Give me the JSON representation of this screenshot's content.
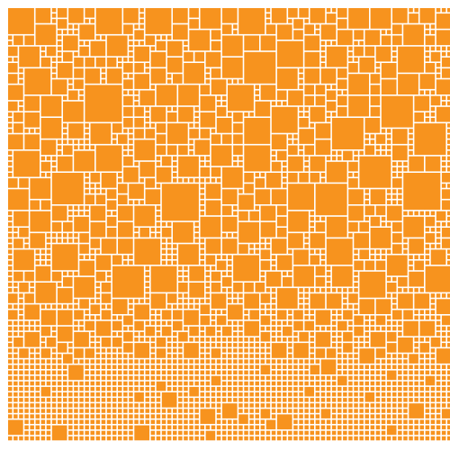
{
  "mosaic": {
    "tile_color": "#F7931E",
    "gap_color": "#FFFFFF",
    "grid_columns": 81,
    "grid_rows": 79,
    "seed": 20240611,
    "density_bands": [
      {
        "from_row": 0,
        "to_row": 24,
        "large_tile_ratio": 0.62
      },
      {
        "from_row": 24,
        "to_row": 51,
        "large_tile_ratio": 0.48
      },
      {
        "from_row": 51,
        "to_row": 63,
        "large_tile_ratio": 0.28
      },
      {
        "from_row": 63,
        "to_row": 79,
        "large_tile_ratio": 0.03
      }
    ],
    "tile_sizes_in_cells": [
      1,
      2,
      3,
      4,
      5,
      6,
      7
    ]
  }
}
